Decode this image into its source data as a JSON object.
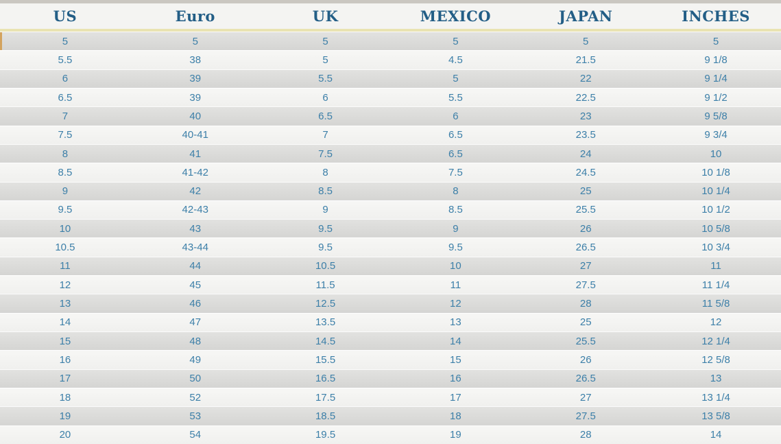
{
  "colors": {
    "header_text": "#235e86",
    "data_text": "#3c7fa8",
    "row_gray": "#d5d5d3",
    "row_light": "#f4f4f2",
    "header_underline": "#e9e3b2",
    "first_row_left_tick": "#d3a35e",
    "top_strip": "#cac7c1"
  },
  "chart_data": {
    "type": "table",
    "title": "Shoe size conversion table",
    "columns": [
      "US",
      "Euro",
      "UK",
      "MEXICO",
      "JAPAN",
      "INCHES"
    ],
    "rows": [
      [
        "5",
        "5",
        "5",
        "5",
        "5",
        "5"
      ],
      [
        "5.5",
        "38",
        "5",
        "4.5",
        "21.5",
        "9 1/8"
      ],
      [
        "6",
        "39",
        "5.5",
        "5",
        "22",
        "9 1/4"
      ],
      [
        "6.5",
        "39",
        "6",
        "5.5",
        "22.5",
        "9 1/2"
      ],
      [
        "7",
        "40",
        "6.5",
        "6",
        "23",
        "9 5/8"
      ],
      [
        "7.5",
        "40-41",
        "7",
        "6.5",
        "23.5",
        "9 3/4"
      ],
      [
        "8",
        "41",
        "7.5",
        "6.5",
        "24",
        "10"
      ],
      [
        "8.5",
        "41-42",
        "8",
        "7.5",
        "24.5",
        "10 1/8"
      ],
      [
        "9",
        "42",
        "8.5",
        "8",
        "25",
        "10 1/4"
      ],
      [
        "9.5",
        "42-43",
        "9",
        "8.5",
        "25.5",
        "10 1/2"
      ],
      [
        "10",
        "43",
        "9.5",
        "9",
        "26",
        "10 5/8"
      ],
      [
        "10.5",
        "43-44",
        "9.5",
        "9.5",
        "26.5",
        "10 3/4"
      ],
      [
        "11",
        "44",
        "10.5",
        "10",
        "27",
        "11"
      ],
      [
        "12",
        "45",
        "11.5",
        "11",
        "27.5",
        "11 1/4"
      ],
      [
        "13",
        "46",
        "12.5",
        "12",
        "28",
        "11 5/8"
      ],
      [
        "14",
        "47",
        "13.5",
        "13",
        "25",
        "12"
      ],
      [
        "15",
        "48",
        "14.5",
        "14",
        "25.5",
        "12 1/4"
      ],
      [
        "16",
        "49",
        "15.5",
        "15",
        "26",
        "12 5/8"
      ],
      [
        "17",
        "50",
        "16.5",
        "16",
        "26.5",
        "13"
      ],
      [
        "18",
        "52",
        "17.5",
        "17",
        "27",
        "13 1/4"
      ],
      [
        "19",
        "53",
        "18.5",
        "18",
        "27.5",
        "13 5/8"
      ],
      [
        "20",
        "54",
        "19.5",
        "19",
        "28",
        "14"
      ]
    ]
  }
}
